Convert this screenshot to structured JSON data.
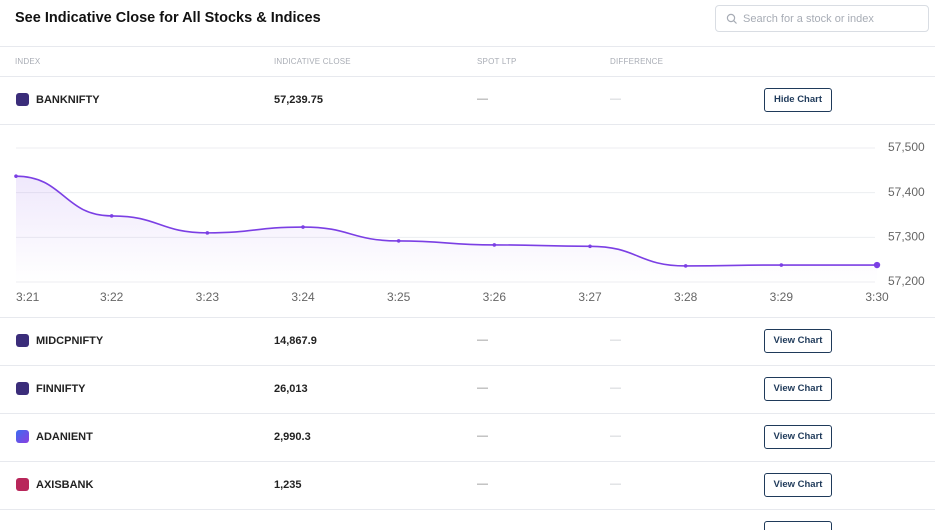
{
  "header": {
    "title": "See Indicative Close for All Stocks & Indices"
  },
  "search": {
    "placeholder": "Search for a stock or index"
  },
  "table": {
    "columns": [
      "INDEX",
      "INDICATIVE CLOSE",
      "SPOT LTP",
      "DIFFERENCE"
    ],
    "rows": [
      {
        "name": "BANKNIFTY",
        "close": "57,239.75",
        "spot": "—",
        "difference": "—",
        "action": "Hide Chart"
      },
      {
        "name": "MIDCPNIFTY",
        "close": "14,867.9",
        "spot": "—",
        "difference": "—",
        "action": "View Chart"
      },
      {
        "name": "FINNIFTY",
        "close": "26,013",
        "spot": "—",
        "difference": "—",
        "action": "View Chart"
      },
      {
        "name": "ADANIENT",
        "close": "2,990.3",
        "spot": "—",
        "difference": "—",
        "action": "View Chart"
      },
      {
        "name": "AXISBANK",
        "close": "1,235",
        "spot": "—",
        "difference": "—",
        "action": "View Chart"
      }
    ]
  },
  "chart_data": {
    "type": "line",
    "categories": [
      "3:21",
      "3:22",
      "3:23",
      "3:24",
      "3:25",
      "3:26",
      "3:27",
      "3:28",
      "3:29",
      "3:30"
    ],
    "values": [
      57437,
      57348,
      57310,
      57323,
      57292,
      57283,
      57280,
      57236,
      57238,
      57238
    ],
    "color": "#7b3fe4",
    "ylim": [
      57200,
      57500
    ],
    "yticks": [
      {
        "value": 57200,
        "label": "57,200"
      },
      {
        "value": 57300,
        "label": "57,300"
      },
      {
        "value": 57400,
        "label": "57,400"
      },
      {
        "value": 57500,
        "label": "57,500"
      }
    ],
    "grid": true
  }
}
